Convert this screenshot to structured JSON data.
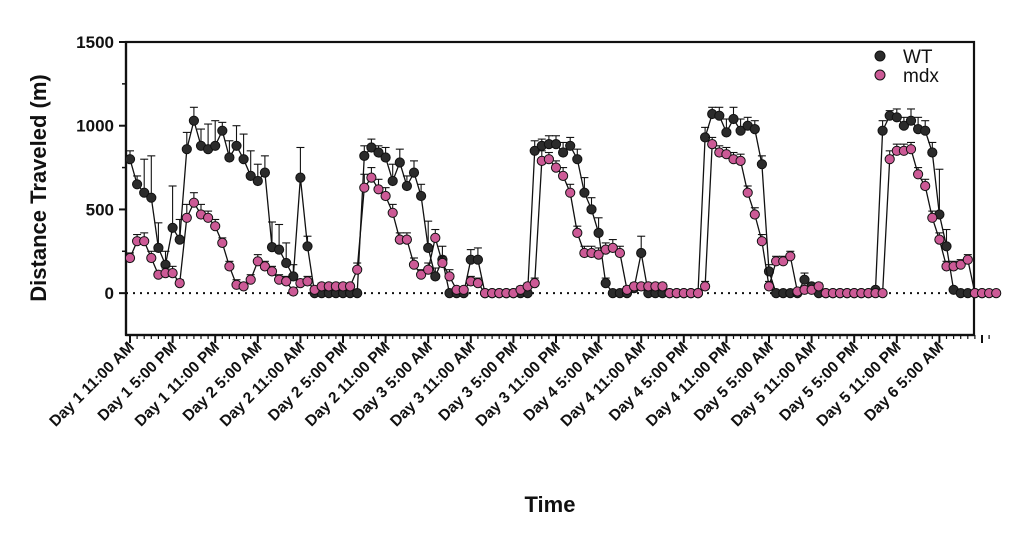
{
  "chart_data": {
    "type": "line",
    "title": "",
    "xlabel": "Time",
    "ylabel": "Distance  Traveled  (m)",
    "ylim": [
      -250,
      1500
    ],
    "yticks": [
      0,
      500,
      1000,
      1500
    ],
    "zero_line": "dotted",
    "legend_position": "top-right",
    "x_tick_labels": [
      "Day 1 11:00 AM",
      "Day 1 5:00 PM",
      "Day 1 11:00 PM",
      "Day 2 5:00 AM",
      "Day 2 11:00 AM",
      "Day 2 5:00 PM",
      "Day 2 11:00 PM",
      "Day 3 5:00 AM",
      "Day 3 11:00 AM",
      "Day 3 5:00 PM",
      "Day 3 11:00 PM",
      "Day 4 5:00 AM",
      "Day 4 11:00 AM",
      "Day 4 5:00 PM",
      "Day 4 11:00 PM",
      "Day 5 5:00 AM",
      "Day 5 11:00 AM",
      "Day 5 5:00 PM",
      "Day 5 11:00 PM",
      "Day 6 5:00 AM"
    ],
    "x_unit": "hours after Day 1 11:00 AM",
    "x_range": [
      0,
      121
    ],
    "series": [
      {
        "name": "WT",
        "color": "#2b2b2b",
        "values": [
          800,
          650,
          600,
          570,
          270,
          170,
          390,
          320,
          860,
          1030,
          880,
          860,
          880,
          970,
          810,
          880,
          800,
          700,
          670,
          720,
          275,
          260,
          180,
          100,
          690,
          280,
          0,
          0,
          0,
          0,
          0,
          0,
          0,
          820,
          870,
          840,
          810,
          670,
          780,
          640,
          720,
          580,
          270,
          100,
          200,
          0,
          0,
          0,
          200,
          200,
          0,
          0,
          0,
          0,
          0,
          0,
          0,
          850,
          880,
          890,
          890,
          840,
          880,
          800,
          600,
          500,
          360,
          60,
          0,
          0,
          0,
          30,
          240,
          0,
          0,
          0,
          0,
          0,
          0,
          0,
          0,
          930,
          1070,
          1060,
          960,
          1040,
          970,
          1000,
          980,
          770,
          130,
          0,
          0,
          0,
          0,
          80,
          40,
          0,
          0,
          0,
          0,
          0,
          0,
          0,
          0,
          20,
          970,
          1060,
          1050,
          1000,
          1030,
          980,
          970,
          840,
          470,
          280,
          20,
          0,
          0,
          0,
          0
        ],
        "errors": [
          50,
          50,
          200,
          250,
          150,
          80,
          250,
          120,
          100,
          80,
          100,
          150,
          150,
          50,
          100,
          120,
          150,
          150,
          100,
          100,
          150,
          150,
          120,
          70,
          180,
          60,
          0,
          0,
          0,
          0,
          0,
          0,
          0,
          60,
          50,
          40,
          60,
          100,
          80,
          60,
          70,
          70,
          160,
          50,
          80,
          10,
          10,
          10,
          60,
          70,
          0,
          0,
          0,
          0,
          0,
          0,
          0,
          60,
          40,
          50,
          50,
          60,
          50,
          60,
          90,
          70,
          90,
          30,
          0,
          0,
          0,
          20,
          100,
          0,
          0,
          0,
          0,
          0,
          0,
          0,
          0,
          60,
          40,
          50,
          80,
          70,
          70,
          50,
          50,
          50,
          40,
          0,
          0,
          0,
          0,
          40,
          20,
          0,
          0,
          0,
          0,
          0,
          0,
          0,
          0,
          10,
          60,
          30,
          50,
          50,
          70,
          70,
          60,
          60,
          270,
          100,
          10,
          0,
          0,
          0,
          0
        ]
      },
      {
        "name": "mdx",
        "color": "#cc5a96",
        "values": [
          210,
          310,
          310,
          210,
          110,
          120,
          120,
          60,
          450,
          540,
          470,
          450,
          400,
          300,
          160,
          50,
          40,
          80,
          190,
          160,
          130,
          80,
          70,
          10,
          60,
          70,
          20,
          40,
          40,
          40,
          40,
          40,
          140,
          630,
          690,
          620,
          580,
          480,
          320,
          320,
          170,
          110,
          140,
          330,
          180,
          100,
          20,
          20,
          70,
          60,
          0,
          0,
          0,
          0,
          0,
          20,
          40,
          60,
          790,
          800,
          750,
          700,
          600,
          360,
          240,
          240,
          230,
          260,
          270,
          240,
          20,
          40,
          40,
          40,
          40,
          40,
          0,
          0,
          0,
          0,
          0,
          40,
          890,
          840,
          830,
          800,
          790,
          600,
          470,
          310,
          40,
          190,
          190,
          220,
          10,
          20,
          20,
          40,
          0,
          0,
          0,
          0,
          0,
          0,
          0,
          0,
          0,
          800,
          850,
          850,
          860,
          710,
          640,
          450,
          320,
          160,
          160,
          170,
          200,
          0,
          0,
          0,
          0
        ],
        "errors": [
          30,
          40,
          50,
          40,
          20,
          30,
          40,
          20,
          80,
          60,
          60,
          40,
          40,
          30,
          30,
          30,
          20,
          30,
          40,
          30,
          30,
          30,
          30,
          10,
          20,
          30,
          20,
          20,
          20,
          20,
          20,
          20,
          40,
          80,
          60,
          60,
          50,
          50,
          40,
          40,
          40,
          30,
          40,
          50,
          40,
          40,
          10,
          10,
          30,
          30,
          0,
          0,
          0,
          0,
          0,
          20,
          20,
          30,
          60,
          40,
          40,
          50,
          50,
          40,
          40,
          40,
          40,
          40,
          50,
          40,
          20,
          20,
          20,
          20,
          20,
          20,
          0,
          0,
          0,
          0,
          0,
          30,
          40,
          40,
          40,
          40,
          40,
          40,
          40,
          40,
          30,
          30,
          30,
          30,
          10,
          20,
          20,
          20,
          0,
          0,
          0,
          0,
          0,
          0,
          0,
          0,
          0,
          50,
          40,
          40,
          40,
          40,
          40,
          40,
          40,
          30,
          30,
          30,
          30,
          0,
          0,
          0,
          0
        ]
      }
    ]
  }
}
